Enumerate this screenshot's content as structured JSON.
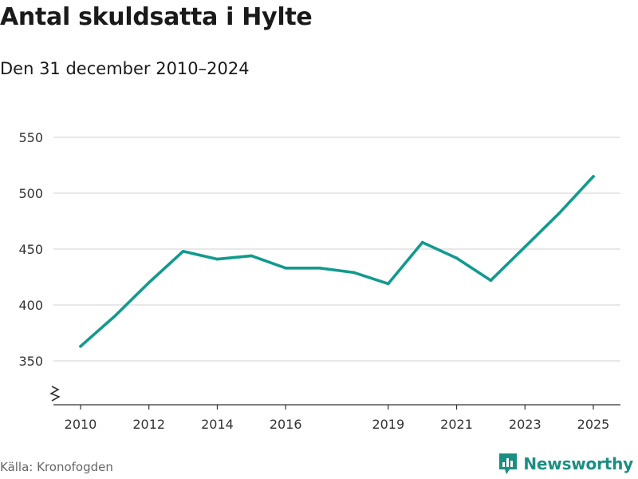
{
  "header": {
    "title": "Antal skuldsatta i Hylte",
    "subtitle": "Den 31 december 2010–2024"
  },
  "footer": {
    "source": "Källa: Kronofogden",
    "brand": "Newsworthy",
    "brand_icon": "newsworthy-logo-icon",
    "brand_color": "#1a8f83"
  },
  "chart_data": {
    "type": "line",
    "title": "Antal skuldsatta i Hylte",
    "subtitle": "Den 31 december 2010–2024",
    "xlabel": "",
    "ylabel": "",
    "x": [
      2010,
      2011,
      2012,
      2013,
      2014,
      2015,
      2016,
      2017,
      2018,
      2019,
      2020,
      2021,
      2022,
      2023,
      2024,
      2025
    ],
    "series": [
      {
        "name": "Antal skuldsatta",
        "color": "#129a8e",
        "values": [
          363,
          390,
          420,
          448,
          441,
          444,
          433,
          433,
          429,
          419,
          456,
          442,
          422,
          452,
          482,
          515
        ]
      }
    ],
    "x_ticks": [
      "2010",
      "2012",
      "2014",
      "2016",
      "2019",
      "2021",
      "2023",
      "2025"
    ],
    "y_ticks": [
      "350",
      "400",
      "450",
      "500",
      "550"
    ],
    "xlim": [
      2009.65,
      2025.4
    ],
    "ylim": [
      310,
      550
    ],
    "axis_break": true,
    "grid": "horizontal"
  }
}
